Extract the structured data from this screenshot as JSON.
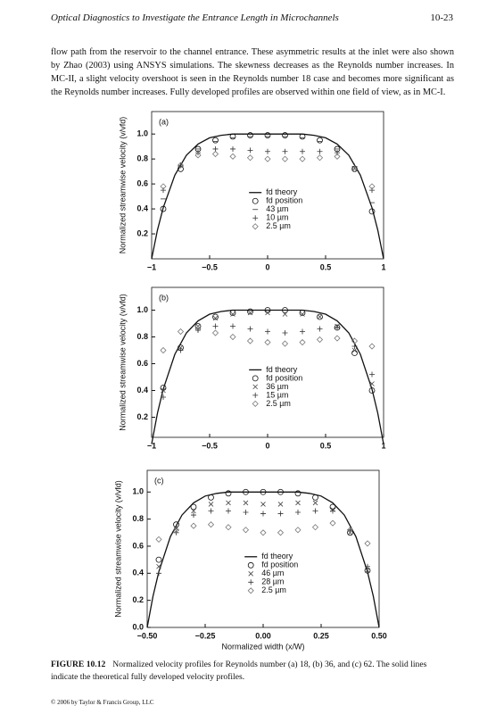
{
  "header": {
    "title": "Optical Diagnostics to Investigate the Entrance Length in Microchannels",
    "page": "10-23"
  },
  "body": [
    "flow path from the reservoir to the channel entrance. These asymmetric results at the inlet were also shown",
    "by Zhao (2003) using ANSYS simulations. The skewness decreases as the Reynolds number increases. In",
    "MC-II, a slight velocity overshoot is seen in the Reynolds number 18 case and becomes more significant as",
    "the Reynolds number increases. Fully developed profiles are observed within one field of view, as in MC-I."
  ],
  "chart_data": [
    {
      "type": "scatter",
      "annotation": "(a)",
      "y_label": "Normalized streamwise velocity (v/vfd)",
      "legend": "center",
      "xlim": [
        -1,
        1
      ],
      "ylim": [
        0,
        1.18
      ],
      "xticks": [
        {
          "value": -1,
          "label": "−1"
        },
        {
          "value": -0.5,
          "label": "−0.5"
        },
        0,
        0.5,
        1
      ],
      "yticks": [
        0.2,
        0.4,
        0.6,
        0.8,
        {
          "value": 1,
          "label": "1.0"
        }
      ],
      "x": [
        -0.9,
        -0.75,
        -0.6,
        -0.45,
        -0.3,
        -0.15,
        0,
        0.15,
        0.3,
        0.45,
        0.6,
        0.75,
        0.9
      ],
      "series": [
        {
          "name": "fd theory",
          "marker": "line",
          "color": "#111111",
          "x": [
            -1,
            -0.95,
            -0.9,
            -0.8,
            -0.7,
            -0.6,
            -0.5,
            -0.4,
            -0.3,
            -0.2,
            -0.1,
            0,
            0.1,
            0.2,
            0.3,
            0.4,
            0.5,
            0.6,
            0.7,
            0.8,
            0.9,
            0.95,
            1
          ],
          "values": [
            0,
            0.23,
            0.41,
            0.67,
            0.83,
            0.92,
            0.97,
            0.99,
            1,
            1,
            1,
            1,
            1,
            1,
            1,
            0.99,
            0.97,
            0.92,
            0.83,
            0.67,
            0.41,
            0.23,
            0
          ]
        },
        {
          "name": "fd position",
          "marker": "circle",
          "color": "#111111",
          "values": [
            0.4,
            0.72,
            0.88,
            0.95,
            0.98,
            0.99,
            0.99,
            0.99,
            0.98,
            0.95,
            0.88,
            0.72,
            0.38
          ]
        },
        {
          "name": "43 µm",
          "marker": "dash",
          "color": "#333333",
          "values": [
            0.48,
            0.74,
            0.88,
            0.94,
            0.97,
            0.98,
            0.98,
            0.98,
            0.97,
            0.94,
            0.88,
            0.72,
            0.45
          ]
        },
        {
          "name": "10 µm",
          "marker": "plus",
          "color": "#333333",
          "values": [
            0.55,
            0.75,
            0.85,
            0.88,
            0.88,
            0.87,
            0.86,
            0.86,
            0.86,
            0.86,
            0.85,
            0.74,
            0.55
          ]
        },
        {
          "name": "2.5 µm",
          "marker": "diamond",
          "color": "#777777",
          "values": [
            0.58,
            0.75,
            0.83,
            0.84,
            0.82,
            0.81,
            0.8,
            0.8,
            0.8,
            0.81,
            0.82,
            0.72,
            0.58
          ]
        }
      ]
    },
    {
      "type": "scatter",
      "annotation": "(b)",
      "y_label": "Normalized streamwise velocity (v/vfd)",
      "legend": "center",
      "xlim": [
        -1,
        1
      ],
      "ylim": [
        0.05,
        1.17
      ],
      "xticks": [
        {
          "value": -1,
          "label": "−1"
        },
        {
          "value": -0.5,
          "label": "−0.5"
        },
        0,
        0.5,
        1
      ],
      "yticks": [
        0.2,
        0.4,
        0.6,
        0.8,
        {
          "value": 1,
          "label": "1.0"
        }
      ],
      "x": [
        -0.9,
        -0.75,
        -0.6,
        -0.45,
        -0.3,
        -0.15,
        0,
        0.15,
        0.3,
        0.45,
        0.6,
        0.75,
        0.9
      ],
      "series": [
        {
          "name": "fd theory",
          "marker": "line",
          "color": "#111111",
          "x": [
            -1,
            -0.95,
            -0.9,
            -0.8,
            -0.7,
            -0.6,
            -0.5,
            -0.4,
            -0.3,
            -0.2,
            -0.1,
            0,
            0.1,
            0.2,
            0.3,
            0.4,
            0.5,
            0.6,
            0.7,
            0.8,
            0.9,
            0.95,
            1
          ],
          "values": [
            0,
            0.23,
            0.41,
            0.67,
            0.83,
            0.92,
            0.97,
            0.99,
            1,
            1,
            1,
            1,
            1,
            1,
            1,
            0.99,
            0.97,
            0.92,
            0.83,
            0.67,
            0.41,
            0.23,
            0
          ]
        },
        {
          "name": "fd position",
          "marker": "circle",
          "color": "#111111",
          "values": [
            0.42,
            0.72,
            0.88,
            0.95,
            0.98,
            0.99,
            1,
            1,
            0.98,
            0.95,
            0.87,
            0.68,
            0.4
          ]
        },
        {
          "name": "36 µm",
          "marker": "x",
          "color": "#444444",
          "values": [
            0.4,
            0.72,
            0.88,
            0.94,
            0.97,
            0.98,
            0.98,
            0.97,
            0.97,
            0.95,
            0.88,
            0.7,
            0.45
          ]
        },
        {
          "name": "15 µm",
          "marker": "plus",
          "color": "#333333",
          "values": [
            0.35,
            0.7,
            0.85,
            0.88,
            0.88,
            0.86,
            0.84,
            0.83,
            0.84,
            0.86,
            0.87,
            0.73,
            0.52
          ]
        },
        {
          "name": "2.5 µm",
          "marker": "diamond",
          "color": "#777777",
          "values": [
            0.7,
            0.84,
            0.86,
            0.83,
            0.8,
            0.77,
            0.76,
            0.75,
            0.76,
            0.78,
            0.79,
            0.77,
            0.73
          ]
        }
      ]
    },
    {
      "type": "scatter",
      "annotation": "(c)",
      "y_label": "Normalized streamwise velocity (v/vfd)",
      "x_label": "Normalized width (x/W)",
      "legend": "center",
      "xlim": [
        -0.5,
        0.5
      ],
      "ylim": [
        0,
        1.16
      ],
      "xticks": [
        {
          "value": -0.5,
          "label": "−0.50"
        },
        {
          "value": -0.25,
          "label": "−0.25"
        },
        {
          "value": 0,
          "label": "0.00"
        },
        0.25,
        {
          "value": 0.5,
          "label": "0.50"
        }
      ],
      "yticks": [
        {
          "value": 0,
          "label": "0.0"
        },
        0.2,
        0.4,
        0.6,
        0.8,
        {
          "value": 1,
          "label": "1.0"
        }
      ],
      "x": [
        -0.45,
        -0.375,
        -0.3,
        -0.225,
        -0.15,
        -0.075,
        0,
        0.075,
        0.15,
        0.225,
        0.3,
        0.375,
        0.45
      ],
      "series": [
        {
          "name": "fd theory",
          "marker": "line",
          "color": "#111111",
          "x": [
            -0.5,
            -0.475,
            -0.45,
            -0.4,
            -0.35,
            -0.3,
            -0.25,
            -0.2,
            -0.15,
            -0.1,
            -0.05,
            0,
            0.05,
            0.1,
            0.15,
            0.2,
            0.25,
            0.3,
            0.35,
            0.4,
            0.45,
            0.475,
            0.5
          ],
          "values": [
            0,
            0.23,
            0.41,
            0.67,
            0.83,
            0.92,
            0.97,
            0.99,
            1,
            1,
            1,
            1,
            1,
            1,
            1,
            0.99,
            0.97,
            0.92,
            0.83,
            0.67,
            0.41,
            0.23,
            0
          ]
        },
        {
          "name": "fd position",
          "marker": "circle",
          "color": "#111111",
          "values": [
            0.5,
            0.76,
            0.89,
            0.96,
            0.99,
            1,
            1,
            1,
            0.99,
            0.96,
            0.89,
            0.7,
            0.42
          ]
        },
        {
          "name": "46 µm",
          "marker": "x",
          "color": "#444444",
          "values": [
            0.45,
            0.73,
            0.86,
            0.91,
            0.92,
            0.92,
            0.91,
            0.91,
            0.92,
            0.92,
            0.87,
            0.7,
            0.42
          ]
        },
        {
          "name": "28 µm",
          "marker": "plus",
          "color": "#333333",
          "values": [
            0.4,
            0.7,
            0.83,
            0.86,
            0.86,
            0.85,
            0.84,
            0.84,
            0.85,
            0.86,
            0.86,
            0.72,
            0.45
          ]
        },
        {
          "name": "2.5 µm",
          "marker": "diamond",
          "color": "#777777",
          "values": [
            0.65,
            0.72,
            0.75,
            0.76,
            0.74,
            0.72,
            0.7,
            0.7,
            0.72,
            0.74,
            0.77,
            0.72,
            0.62
          ]
        }
      ]
    }
  ],
  "caption": {
    "label": "FIGURE 10.12",
    "text": "Normalized velocity profiles for Reynolds number (a) 18, (b) 36, and (c) 62. The solid lines indicate the theoretical fully developed velocity profiles."
  },
  "footer": "© 2006 by Taylor & Francis Group, LLC"
}
